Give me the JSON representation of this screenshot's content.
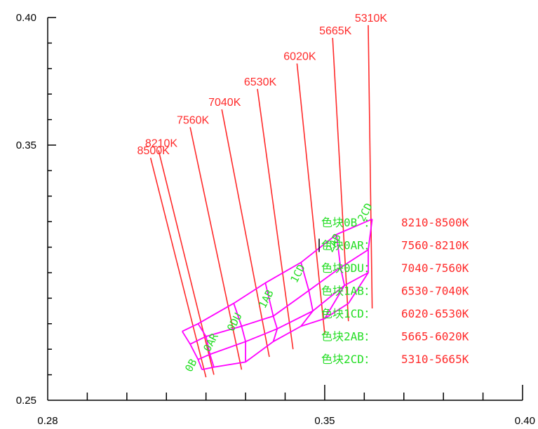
{
  "colors": {
    "axis": "#000000",
    "cct_line": "#ff2a2a",
    "cct_text": "#ff2a2a",
    "bin_border": "#ff00ff",
    "bin_text": "#22dd22",
    "legend_value": "#ff2a2a"
  },
  "chart_data": {
    "type": "diagram",
    "xlim": [
      0.28,
      0.4
    ],
    "ylim": [
      0.25,
      0.4
    ],
    "x_ticks_labeled": [
      "0.28",
      "0.35",
      "0.40"
    ],
    "y_ticks_labeled": [
      "0.25",
      "0.35",
      "0.40"
    ],
    "isotherms": [
      {
        "label": "8500K",
        "top": [
          0.306,
          0.345
        ],
        "bottom": [
          0.32,
          0.259
        ]
      },
      {
        "label": "8210K",
        "top": [
          0.308,
          0.348
        ],
        "bottom": [
          0.322,
          0.26
        ]
      },
      {
        "label": "7560K",
        "top": [
          0.316,
          0.357
        ],
        "bottom": [
          0.329,
          0.262
        ]
      },
      {
        "label": "7040K",
        "top": [
          0.324,
          0.364
        ],
        "bottom": [
          0.336,
          0.267
        ]
      },
      {
        "label": "6530K",
        "top": [
          0.333,
          0.372
        ],
        "bottom": [
          0.342,
          0.27
        ]
      },
      {
        "label": "6020K",
        "top": [
          0.343,
          0.382
        ],
        "bottom": [
          0.35,
          0.276
        ]
      },
      {
        "label": "5665K",
        "top": [
          0.352,
          0.392
        ],
        "bottom": [
          0.356,
          0.281
        ]
      },
      {
        "label": "5310K",
        "top": [
          0.361,
          0.397
        ],
        "bottom": [
          0.362,
          0.286
        ]
      }
    ],
    "bin_rows": [
      [
        [
          0.314,
          0.277
        ],
        [
          0.318,
          0.28
        ],
        [
          0.327,
          0.288
        ],
        [
          0.335,
          0.296
        ],
        [
          0.344,
          0.304
        ],
        [
          0.353,
          0.315
        ],
        [
          0.362,
          0.321
        ]
      ],
      [
        [
          0.316,
          0.272
        ],
        [
          0.32,
          0.275
        ],
        [
          0.329,
          0.279
        ],
        [
          0.337,
          0.283
        ],
        [
          0.346,
          0.293
        ],
        [
          0.354,
          0.302
        ],
        [
          0.361,
          0.309
        ]
      ],
      [
        [
          0.318,
          0.266
        ],
        [
          0.321,
          0.268
        ],
        [
          0.33,
          0.273
        ],
        [
          0.338,
          0.278
        ],
        [
          0.347,
          0.285
        ],
        [
          0.355,
          0.295
        ],
        [
          0.361,
          0.3
        ]
      ],
      [
        [
          0.319,
          0.262
        ],
        [
          0.322,
          0.263
        ],
        [
          0.33,
          0.265
        ],
        [
          0.337,
          0.273
        ],
        [
          0.344,
          0.279
        ],
        [
          0.35,
          0.282
        ],
        [
          0.356,
          0.288
        ]
      ]
    ],
    "bin_labels": [
      {
        "text": "0B",
        "x": 0.317,
        "y": 0.263,
        "angle": -62
      },
      {
        "text": "0AR",
        "x": 0.322,
        "y": 0.272,
        "angle": -62
      },
      {
        "text": "0DU",
        "x": 0.328,
        "y": 0.28,
        "angle": -62
      },
      {
        "text": "1AB",
        "x": 0.336,
        "y": 0.289,
        "angle": -62
      },
      {
        "text": "1CD",
        "x": 0.344,
        "y": 0.299,
        "angle": -62
      },
      {
        "text": "2AB",
        "x": 0.353,
        "y": 0.311,
        "angle": -62
      },
      {
        "text": "2CD",
        "x": 0.361,
        "y": 0.323,
        "angle": -62
      }
    ],
    "legend": [
      {
        "name": "色块0B ：",
        "range": "8210-8500K"
      },
      {
        "name": "色块0AR：",
        "range": "7560-8210K"
      },
      {
        "name": "色块0DU：",
        "range": "7040-7560K"
      },
      {
        "name": "色块1AB：",
        "range": "6530-7040K"
      },
      {
        "name": "色块1CD：",
        "range": "6020-6530K"
      },
      {
        "name": "色块2AB：",
        "range": "5665-6020K"
      },
      {
        "name": "色块2CD：",
        "range": "5310-5665K"
      }
    ]
  }
}
